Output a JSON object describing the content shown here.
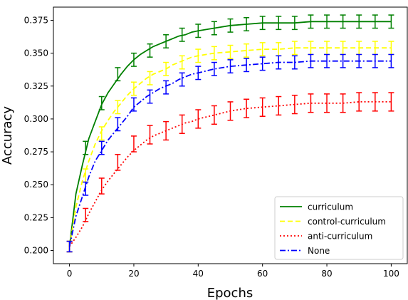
{
  "chart_data": {
    "type": "line",
    "xlabel": "Epochs",
    "ylabel": "Accuracy",
    "xlim": [
      -5,
      105
    ],
    "ylim": [
      0.19,
      0.385
    ],
    "xticks": [
      0,
      20,
      40,
      60,
      80,
      100
    ],
    "yticks": [
      0.2,
      0.225,
      0.25,
      0.275,
      0.3,
      0.325,
      0.35,
      0.375
    ],
    "xtick_labels": [
      "0",
      "20",
      "40",
      "60",
      "80",
      "100"
    ],
    "ytick_labels": [
      "0.200",
      "0.225",
      "0.250",
      "0.275",
      "0.300",
      "0.325",
      "0.350",
      "0.375"
    ],
    "legend_position": "lower-right",
    "grid": false,
    "x": [
      0,
      2,
      4,
      6,
      8,
      10,
      12,
      14,
      16,
      18,
      20,
      22,
      24,
      26,
      28,
      30,
      32,
      34,
      36,
      38,
      40,
      45,
      50,
      55,
      60,
      65,
      70,
      75,
      80,
      85,
      90,
      95,
      100
    ],
    "errorbar_x": [
      0,
      5,
      10,
      15,
      20,
      25,
      30,
      35,
      40,
      45,
      50,
      55,
      60,
      65,
      70,
      75,
      80,
      85,
      90,
      95,
      100
    ],
    "series": [
      {
        "name": "curriculum",
        "color": "#008000",
        "linestyle": "solid",
        "values": [
          0.203,
          0.243,
          0.265,
          0.285,
          0.298,
          0.311,
          0.32,
          0.327,
          0.334,
          0.34,
          0.345,
          0.349,
          0.352,
          0.355,
          0.357,
          0.359,
          0.361,
          0.363,
          0.364,
          0.366,
          0.367,
          0.369,
          0.371,
          0.372,
          0.373,
          0.373,
          0.373,
          0.374,
          0.374,
          0.374,
          0.374,
          0.374,
          0.374
        ],
        "errorbar_y": [
          0.203,
          0.278,
          0.312,
          0.334,
          0.345,
          0.352,
          0.359,
          0.364,
          0.367,
          0.369,
          0.371,
          0.372,
          0.373,
          0.373,
          0.373,
          0.374,
          0.374,
          0.374,
          0.374,
          0.374,
          0.374
        ],
        "errorbar_err": [
          0.004,
          0.005,
          0.005,
          0.005,
          0.005,
          0.005,
          0.005,
          0.005,
          0.005,
          0.005,
          0.005,
          0.005,
          0.005,
          0.005,
          0.005,
          0.005,
          0.005,
          0.005,
          0.005,
          0.005,
          0.005
        ]
      },
      {
        "name": "control-curriculum",
        "color": "#ffff00",
        "linestyle": "dashed",
        "values": [
          0.203,
          0.233,
          0.253,
          0.268,
          0.281,
          0.291,
          0.299,
          0.306,
          0.312,
          0.318,
          0.323,
          0.327,
          0.331,
          0.334,
          0.336,
          0.338,
          0.341,
          0.343,
          0.345,
          0.347,
          0.348,
          0.35,
          0.351,
          0.352,
          0.353,
          0.353,
          0.354,
          0.354,
          0.354,
          0.354,
          0.354,
          0.354,
          0.354
        ],
        "errorbar_y": [
          0.203,
          0.257,
          0.289,
          0.309,
          0.323,
          0.331,
          0.338,
          0.343,
          0.348,
          0.35,
          0.351,
          0.352,
          0.353,
          0.353,
          0.354,
          0.354,
          0.354,
          0.354,
          0.354,
          0.354,
          0.354
        ],
        "errorbar_err": [
          0.004,
          0.005,
          0.005,
          0.005,
          0.005,
          0.005,
          0.005,
          0.005,
          0.005,
          0.005,
          0.005,
          0.005,
          0.005,
          0.005,
          0.005,
          0.005,
          0.005,
          0.005,
          0.005,
          0.005,
          0.005
        ]
      },
      {
        "name": "anti-curriculum",
        "color": "#ff0000",
        "linestyle": "dotted",
        "values": [
          0.203,
          0.21,
          0.218,
          0.228,
          0.237,
          0.246,
          0.253,
          0.259,
          0.265,
          0.271,
          0.276,
          0.28,
          0.284,
          0.287,
          0.289,
          0.291,
          0.293,
          0.295,
          0.297,
          0.298,
          0.3,
          0.303,
          0.306,
          0.308,
          0.309,
          0.31,
          0.311,
          0.312,
          0.312,
          0.312,
          0.313,
          0.313,
          0.313
        ],
        "errorbar_y": [
          0.203,
          0.227,
          0.249,
          0.267,
          0.281,
          0.288,
          0.291,
          0.296,
          0.3,
          0.303,
          0.306,
          0.308,
          0.309,
          0.31,
          0.311,
          0.312,
          0.312,
          0.312,
          0.313,
          0.313,
          0.313
        ],
        "errorbar_err": [
          0.004,
          0.005,
          0.006,
          0.006,
          0.006,
          0.007,
          0.007,
          0.007,
          0.007,
          0.007,
          0.007,
          0.007,
          0.007,
          0.007,
          0.007,
          0.007,
          0.007,
          0.007,
          0.007,
          0.007,
          0.007
        ]
      },
      {
        "name": "None",
        "color": "#0000ff",
        "linestyle": "dashdot",
        "values": [
          0.203,
          0.226,
          0.241,
          0.256,
          0.268,
          0.276,
          0.284,
          0.29,
          0.296,
          0.302,
          0.309,
          0.313,
          0.317,
          0.32,
          0.323,
          0.325,
          0.327,
          0.33,
          0.332,
          0.334,
          0.335,
          0.338,
          0.34,
          0.341,
          0.342,
          0.343,
          0.343,
          0.344,
          0.344,
          0.344,
          0.344,
          0.344,
          0.344
        ],
        "errorbar_y": [
          0.203,
          0.247,
          0.278,
          0.296,
          0.311,
          0.317,
          0.324,
          0.33,
          0.335,
          0.338,
          0.34,
          0.341,
          0.342,
          0.343,
          0.343,
          0.344,
          0.344,
          0.344,
          0.344,
          0.344,
          0.344
        ],
        "errorbar_err": [
          0.004,
          0.005,
          0.005,
          0.005,
          0.005,
          0.005,
          0.005,
          0.005,
          0.005,
          0.005,
          0.005,
          0.005,
          0.005,
          0.005,
          0.005,
          0.005,
          0.005,
          0.005,
          0.005,
          0.005,
          0.005
        ]
      }
    ]
  }
}
